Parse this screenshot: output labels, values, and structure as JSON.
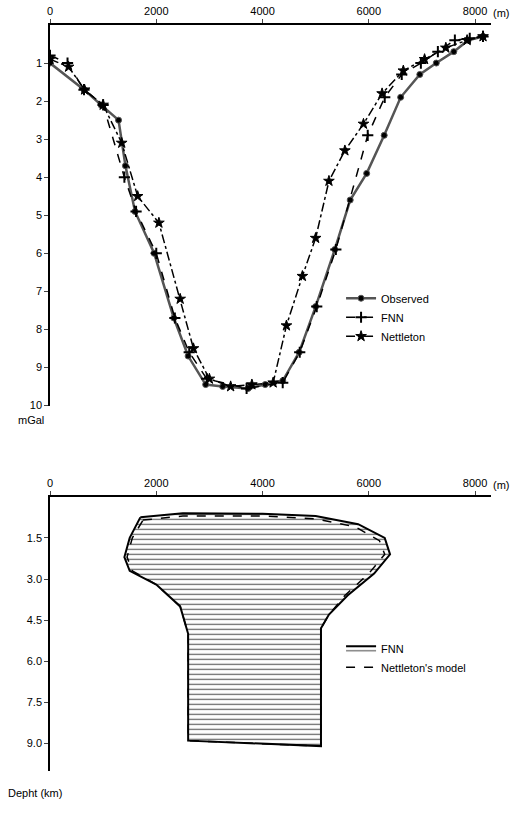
{
  "chart_data": [
    {
      "type": "line",
      "x_label": "(m)",
      "y_label": "mGal",
      "xlim": [
        0,
        8300
      ],
      "xticks": [
        0,
        2000,
        4000,
        6000,
        8000
      ],
      "ylim": [
        0,
        10
      ],
      "yticks": [
        1,
        2,
        3,
        4,
        5,
        6,
        7,
        8,
        9,
        10
      ],
      "legend": "right",
      "series": [
        {
          "name": "Observed",
          "color": "#555555",
          "line_style": "solid",
          "marker": "circle",
          "x": [
            0,
            640,
            960,
            1290,
            1420,
            1600,
            1960,
            2330,
            2600,
            2930,
            3250,
            3730,
            4050,
            4380,
            4690,
            5000,
            5360,
            5650,
            5960,
            6290,
            6600,
            6960,
            7270,
            7600,
            7870,
            8150
          ],
          "values": [
            1.0,
            1.7,
            2.1,
            2.5,
            3.7,
            4.9,
            6.0,
            7.7,
            8.7,
            9.45,
            9.5,
            9.55,
            9.45,
            9.35,
            8.6,
            7.4,
            5.9,
            4.6,
            3.9,
            2.9,
            1.9,
            1.3,
            1.0,
            0.7,
            0.4,
            0.3
          ]
        },
        {
          "name": "FNN",
          "color": "#000000",
          "line_style": "dash",
          "marker": "cross",
          "x": [
            0,
            330,
            640,
            1000,
            1400,
            1620,
            2000,
            2350,
            2620,
            2950,
            3700,
            4380,
            4700,
            5020,
            5380,
            5980,
            6300,
            6620,
            6980,
            7300,
            7620,
            7900,
            8150
          ],
          "values": [
            0.8,
            1.0,
            1.7,
            2.1,
            4.0,
            4.9,
            6.0,
            7.7,
            8.6,
            9.3,
            9.55,
            9.4,
            8.6,
            7.4,
            5.9,
            2.9,
            1.9,
            1.3,
            1.0,
            0.7,
            0.4,
            0.35,
            0.3
          ]
        },
        {
          "name": "Nettleton",
          "color": "#000000",
          "line_style": "dashdot",
          "marker": "star",
          "x": [
            0,
            350,
            650,
            1000,
            1350,
            1650,
            2050,
            2450,
            2700,
            3000,
            3400,
            3800,
            4200,
            4450,
            4750,
            5000,
            5250,
            5550,
            5900,
            6250,
            6650,
            7050,
            7450,
            7850,
            8150
          ],
          "values": [
            0.9,
            1.1,
            1.7,
            2.1,
            3.1,
            4.5,
            5.2,
            7.2,
            8.5,
            9.3,
            9.5,
            9.45,
            9.4,
            7.9,
            6.6,
            5.6,
            4.1,
            3.3,
            2.6,
            1.8,
            1.2,
            0.9,
            0.6,
            0.4,
            0.3
          ]
        }
      ]
    },
    {
      "type": "area",
      "x_label": "(m)",
      "y_label": "Depht (km)",
      "xlim": [
        0,
        8300
      ],
      "xticks": [
        0,
        2000,
        4000,
        6000,
        8000
      ],
      "ylim": [
        0,
        10
      ],
      "yticks": [
        1.5,
        {
          "value": 3,
          "label": "3.0"
        },
        4.5,
        {
          "value": 6,
          "label": "6.0"
        },
        7.5,
        {
          "value": 9,
          "label": "9.0"
        }
      ],
      "legend": "right",
      "series": [
        {
          "name": "FNN",
          "color": "#000000",
          "line_style": "solid",
          "x": [
            1700,
            2500,
            4000,
            5000,
            5800,
            6300,
            6400,
            6100,
            5600,
            5250,
            5100,
            5100,
            2600,
            2600,
            2450,
            2000,
            1500,
            1400,
            1500,
            1700
          ],
          "values": [
            0.75,
            0.6,
            0.62,
            0.7,
            1.0,
            1.5,
            2.1,
            2.8,
            3.6,
            4.3,
            4.8,
            9.1,
            8.9,
            5.0,
            4.0,
            3.2,
            2.7,
            2.2,
            1.5,
            0.75
          ]
        },
        {
          "name": "Nettleton's model",
          "color": "#000000",
          "line_style": "dash",
          "x": [
            1750,
            2500,
            4000,
            5000,
            5750,
            6200,
            6300,
            6000,
            5550,
            5250,
            5100,
            5100,
            2600,
            2600,
            2450,
            2000,
            1550,
            1450,
            1550,
            1750
          ],
          "values": [
            0.85,
            0.7,
            0.7,
            0.8,
            1.1,
            1.6,
            2.1,
            2.8,
            3.6,
            4.3,
            4.8,
            9.1,
            8.9,
            5.0,
            4.0,
            3.2,
            2.7,
            2.2,
            1.5,
            0.85
          ]
        }
      ]
    }
  ]
}
